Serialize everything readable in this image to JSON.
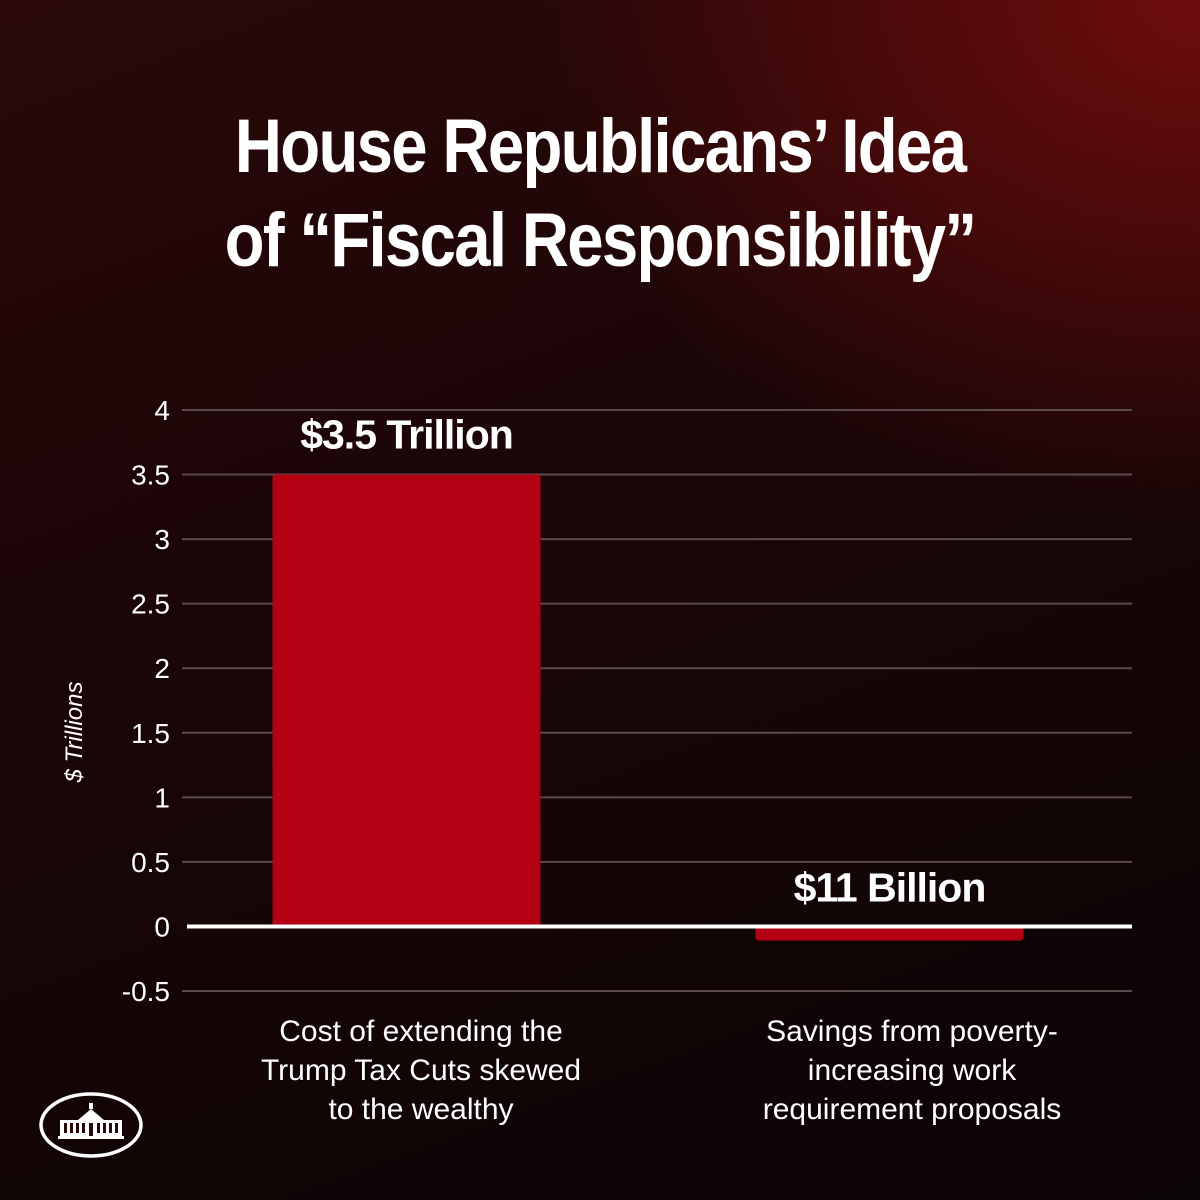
{
  "title_lines": [
    "House Republicans’ Idea",
    "of “Fiscal Responsibility”"
  ],
  "colors": {
    "bar": "#b30012",
    "gridline": "#5a4a4c",
    "zero_line": "#ffffff",
    "text": "#ffffff"
  },
  "logo": {
    "icon": "white-house-icon"
  },
  "chart_data": {
    "type": "bar",
    "ylabel": "$ Trillions",
    "xlabel": "",
    "ylim": [
      -0.5,
      4
    ],
    "yticks": [
      -0.5,
      0,
      0.5,
      1,
      1.5,
      2,
      2.5,
      3,
      3.5,
      4
    ],
    "ytick_labels": [
      "-0.5",
      "0",
      "0.5",
      "1",
      "1.5",
      "2",
      "2.5",
      "3",
      "3.5",
      "4"
    ],
    "grid": true,
    "categories": [
      [
        "Cost of extending the",
        "Trump Tax Cuts skewed",
        "to the wealthy"
      ],
      [
        "Savings from poverty-",
        "increasing work",
        "requirement proposals"
      ]
    ],
    "values": [
      3.5,
      -0.011
    ],
    "data_labels": [
      "$3.5 Trillion",
      "$11 Billion"
    ]
  }
}
